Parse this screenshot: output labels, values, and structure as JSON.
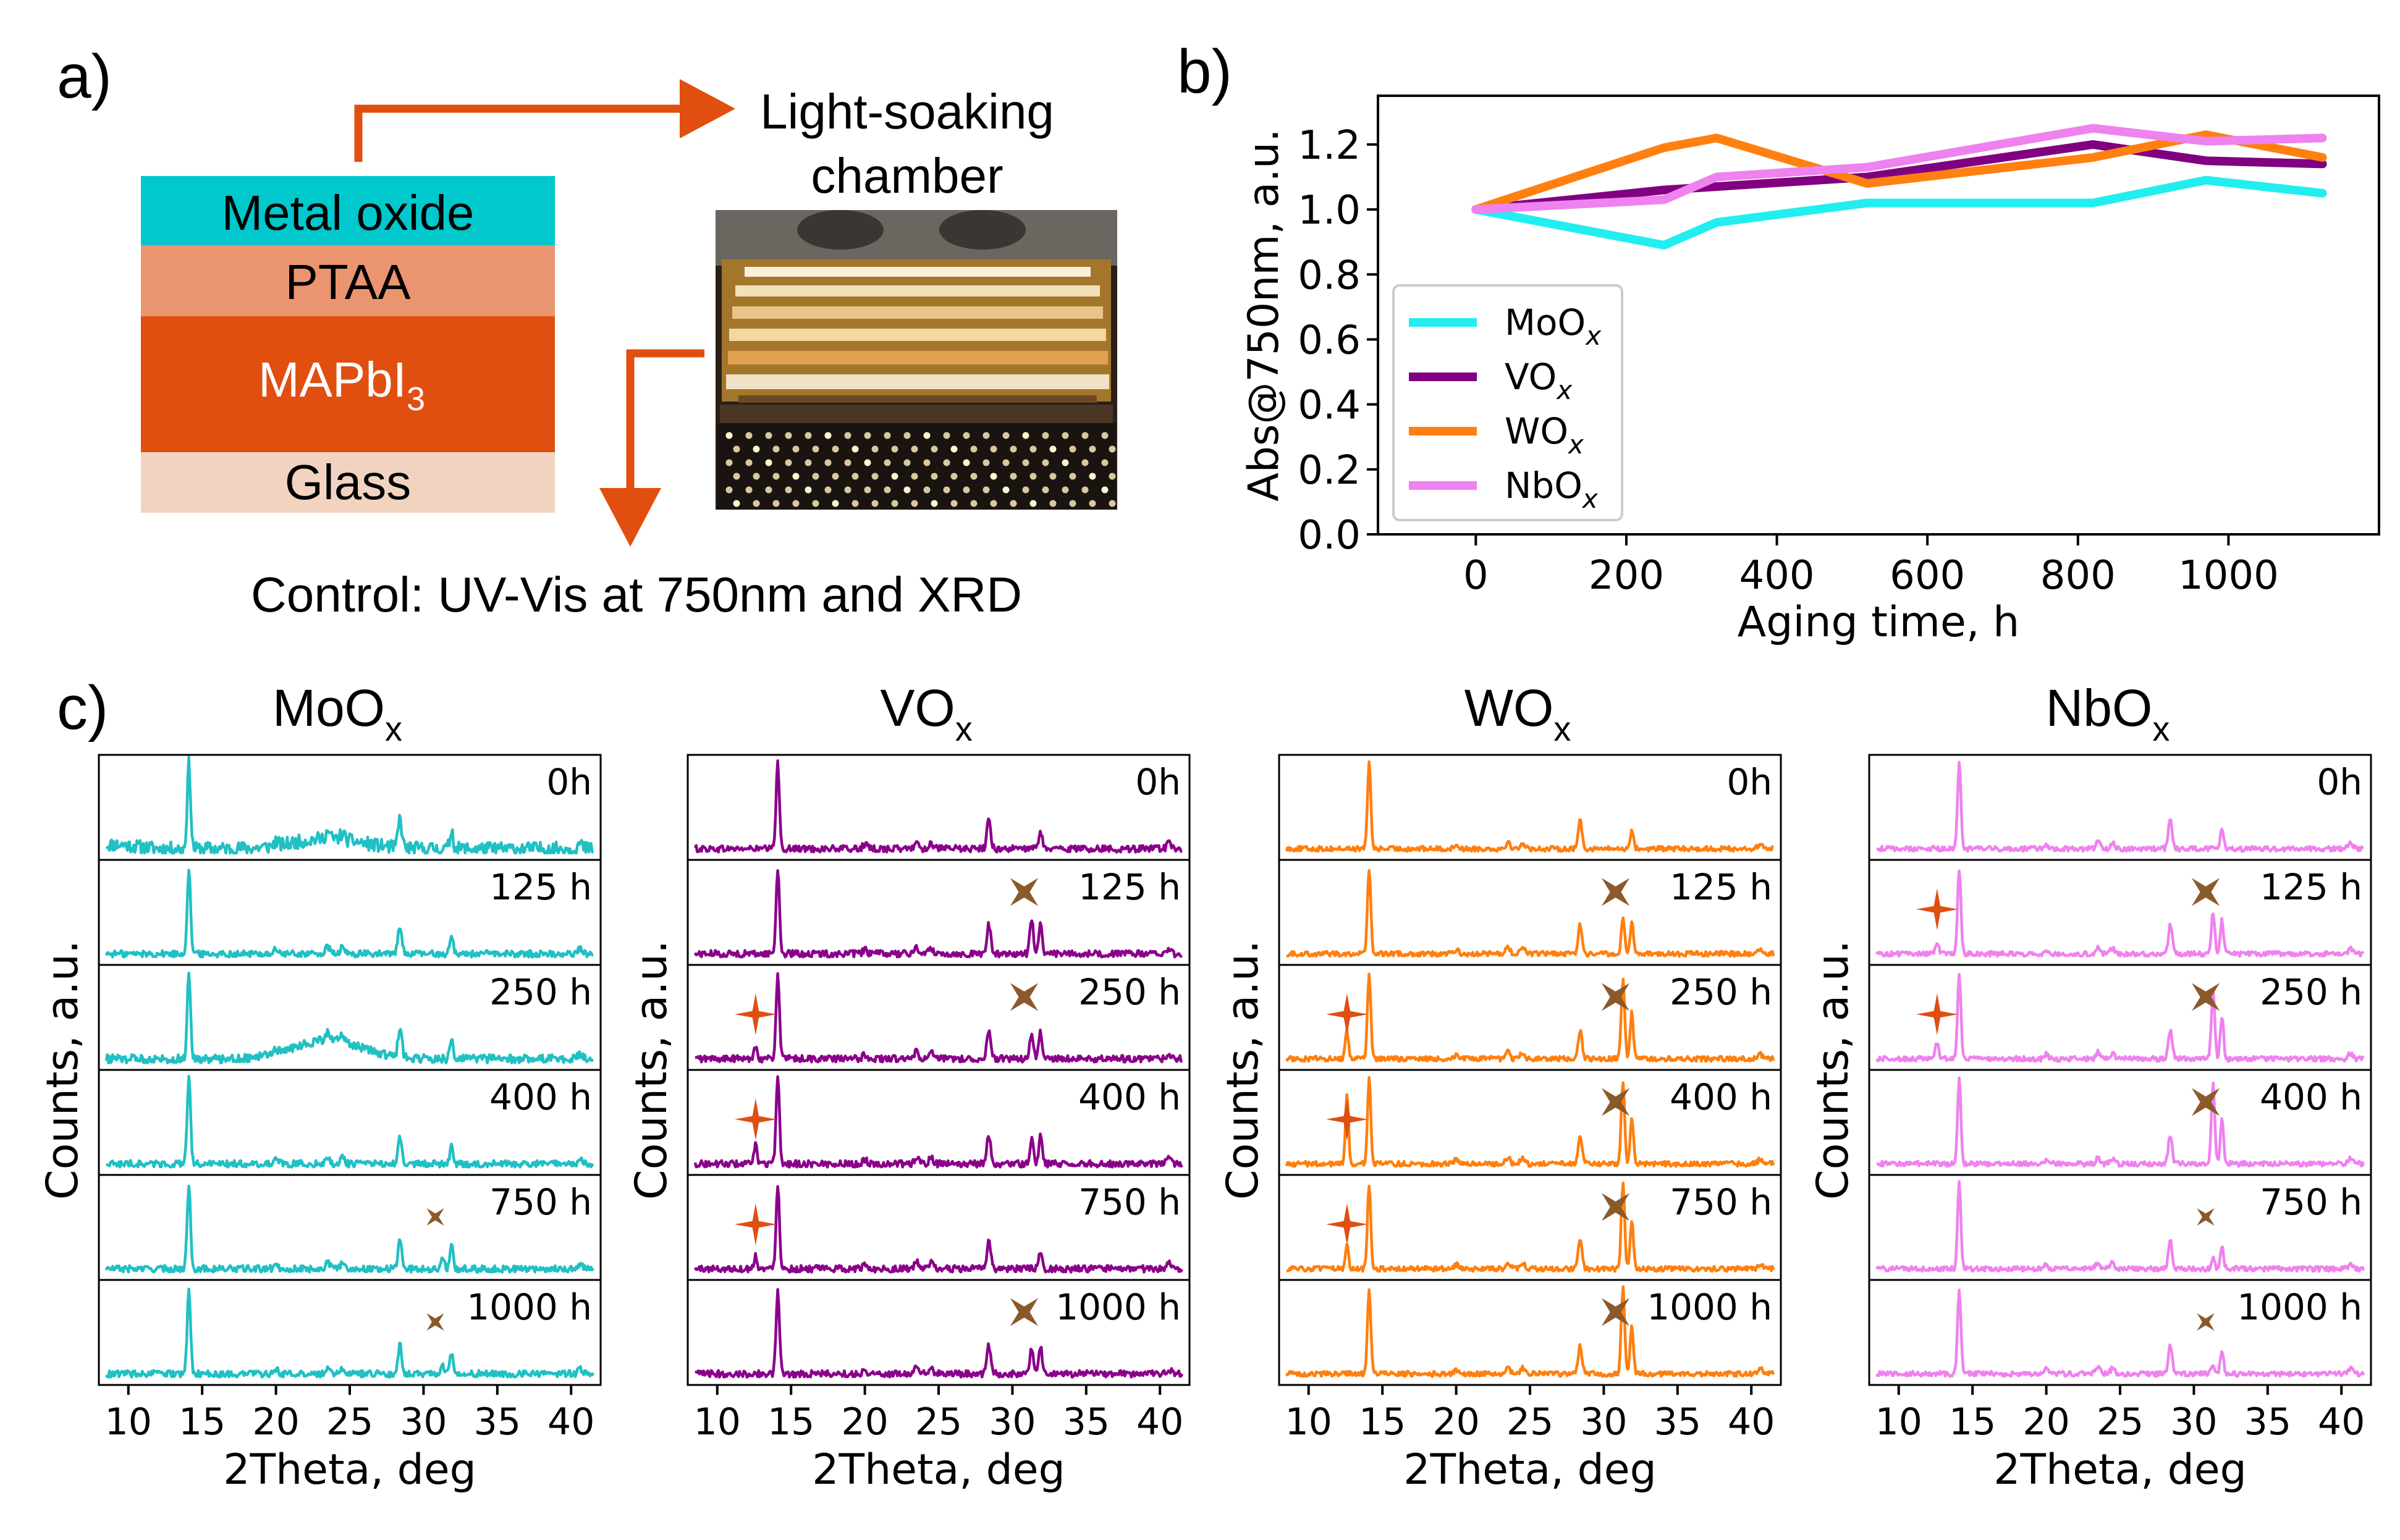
{
  "panel_labels": {
    "a": "a)",
    "b": "b)",
    "c": "c)"
  },
  "schematic": {
    "layers": [
      {
        "name": "Metal oxide",
        "color": "#00c8cc",
        "text_color": "#000000"
      },
      {
        "name": "PTAA",
        "color": "#eb9570",
        "text_color": "#000000"
      },
      {
        "name": "MAPbI",
        "subscript": "3",
        "color": "#e04e10",
        "text_color": "#ffffff"
      },
      {
        "name": "Glass",
        "color": "#f1d3c0",
        "text_color": "#000000"
      }
    ],
    "chamber_label_line1": "Light-soaking",
    "chamber_label_line2": "chamber",
    "control_text": "Control: UV-Vis at 750nm and XRD",
    "arrow_color": "#e04e10"
  },
  "chart_data": [
    {
      "id": "absorbance",
      "type": "line",
      "xlabel": "Aging time, h",
      "ylabel": "Abs@750nm, a.u.",
      "xlim": [
        -130,
        1200
      ],
      "ylim": [
        0.0,
        1.35
      ],
      "xticks": [
        0,
        200,
        400,
        600,
        800,
        1000
      ],
      "yticks": [
        0.0,
        0.2,
        0.4,
        0.6,
        0.8,
        1.0,
        1.2
      ],
      "ytick_labels": [
        "0.0",
        "0.2",
        "0.4",
        "0.6",
        "0.8",
        "1.0",
        "1.2"
      ],
      "legend_position": "lower-left",
      "series": [
        {
          "name": "MoO",
          "sub": "x",
          "color": "#22eef0",
          "x": [
            0,
            250,
            320,
            520,
            820,
            970,
            1125
          ],
          "y": [
            1.0,
            0.89,
            0.96,
            1.02,
            1.02,
            1.09,
            1.05
          ]
        },
        {
          "name": "VO",
          "sub": "x",
          "color": "#800080",
          "x": [
            0,
            250,
            520,
            820,
            970,
            1125
          ],
          "y": [
            1.0,
            1.06,
            1.1,
            1.2,
            1.15,
            1.14
          ]
        },
        {
          "name": "WO",
          "sub": "x",
          "color": "#ff8010",
          "x": [
            0,
            250,
            320,
            520,
            820,
            970,
            1125
          ],
          "y": [
            1.0,
            1.19,
            1.22,
            1.08,
            1.16,
            1.23,
            1.16
          ]
        },
        {
          "name": "NbO",
          "sub": "x",
          "color": "#ee82ee",
          "x": [
            0,
            250,
            320,
            520,
            820,
            970,
            1125
          ],
          "y": [
            1.0,
            1.03,
            1.1,
            1.13,
            1.25,
            1.21,
            1.22
          ]
        }
      ]
    },
    {
      "id": "xrd",
      "type": "line",
      "xlabel": "2Theta, deg",
      "ylabel": "Counts, a.u.",
      "xlim": [
        8,
        42
      ],
      "xticks": [
        10,
        15,
        20,
        25,
        30,
        35,
        40
      ],
      "row_labels": [
        "0h",
        "125 h",
        "250 h",
        "400 h",
        "750 h",
        "1000 h"
      ],
      "marker_legend": {
        "pbi2": "#e04e10",
        "other": "#8b5a2b"
      },
      "columns": [
        {
          "title": "MoO",
          "sub": "x",
          "color": "#20c0c4",
          "noise": [
            0.08,
            0.04,
            0.05,
            0.04,
            0.04,
            0.04
          ],
          "bump": [
            0.12,
            0,
            0.22,
            0,
            0,
            0
          ],
          "pbi2_peak": [
            0,
            0,
            0,
            0,
            0,
            0
          ],
          "new_peak": [
            0,
            0,
            0,
            0,
            0.12,
            0.1
          ],
          "pbi2_marker": [
            false,
            false,
            false,
            false,
            false,
            false
          ],
          "new_marker": [
            "none",
            "none",
            "none",
            "none",
            "small",
            "small"
          ]
        },
        {
          "title": "VO",
          "sub": "x",
          "color": "#8b008b",
          "noise": [
            0.04,
            0.04,
            0.04,
            0.04,
            0.04,
            0.04
          ],
          "bump": [
            0,
            0,
            0,
            0,
            0,
            0
          ],
          "pbi2_peak": [
            0,
            0,
            0.16,
            0.22,
            0.16,
            0
          ],
          "new_peak": [
            0,
            0.42,
            0.3,
            0.3,
            0,
            0.3
          ],
          "pbi2_marker": [
            false,
            false,
            true,
            true,
            true,
            false
          ],
          "new_marker": [
            "none",
            "big",
            "big",
            "none",
            "none",
            "big"
          ]
        },
        {
          "title": "WO",
          "sub": "x",
          "color": "#ff7f0e",
          "noise": [
            0.03,
            0.03,
            0.03,
            0.03,
            0.03,
            0.03
          ],
          "bump": [
            0,
            0,
            0,
            0,
            0,
            0
          ],
          "pbi2_peak": [
            0,
            0,
            0.34,
            0.82,
            0.3,
            0
          ],
          "new_peak": [
            0,
            0.42,
            0.92,
            0.98,
            1.02,
            1.02
          ],
          "pbi2_marker": [
            false,
            false,
            true,
            true,
            true,
            false
          ],
          "new_marker": [
            "none",
            "big",
            "big",
            "big",
            "big",
            "big"
          ]
        },
        {
          "title": "NbO",
          "sub": "x",
          "color": "#ee82ee",
          "noise": [
            0.03,
            0.03,
            0.03,
            0.03,
            0.03,
            0.03
          ],
          "bump": [
            0,
            0,
            0,
            0,
            0,
            0
          ],
          "pbi2_peak": [
            0,
            0.14,
            0.2,
            0,
            0,
            0
          ],
          "new_peak": [
            0,
            0.5,
            0.82,
            0.95,
            0.12,
            0.12
          ],
          "pbi2_marker": [
            false,
            true,
            true,
            false,
            false,
            false
          ],
          "new_marker": [
            "none",
            "big",
            "big",
            "big",
            "small",
            "small"
          ]
        }
      ]
    }
  ]
}
